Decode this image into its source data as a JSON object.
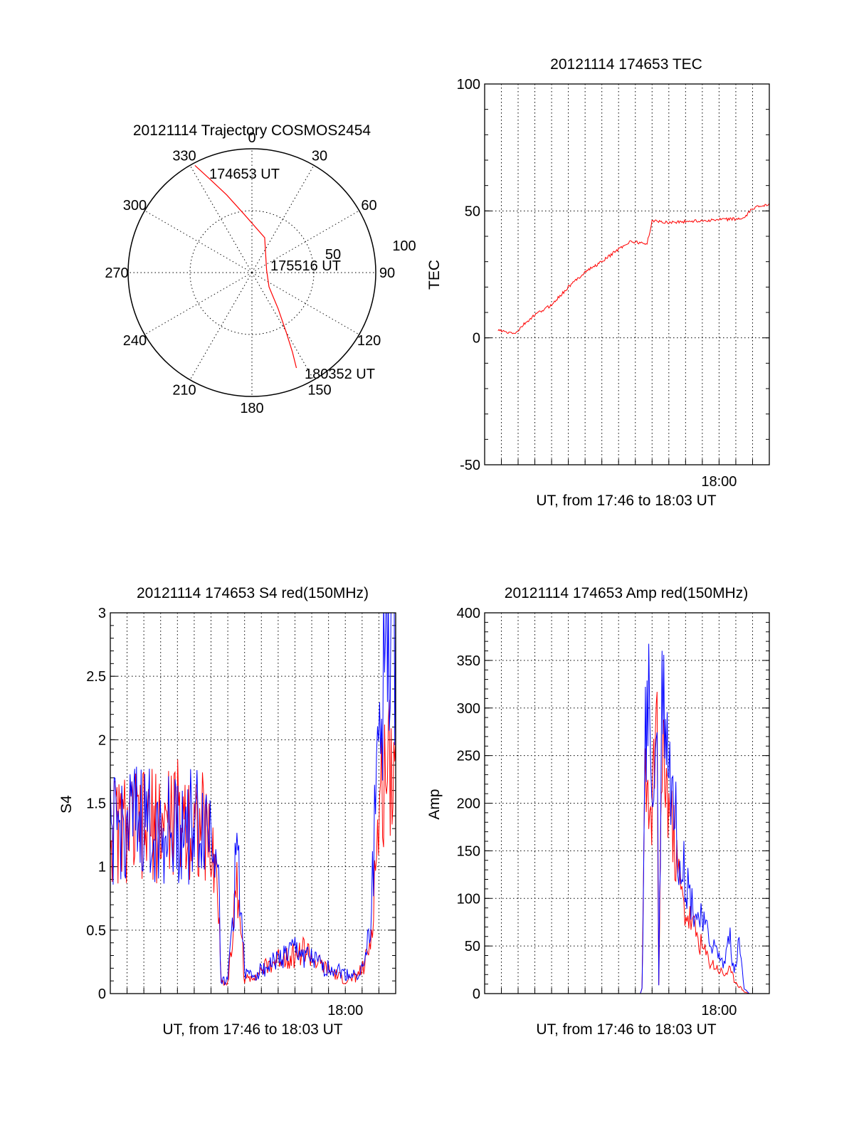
{
  "chart_data": [
    {
      "type": "polar",
      "title": "20121114 Trajectory COSMOS2454",
      "angle_labels": [
        "0",
        "30",
        "60",
        "90",
        "120",
        "150",
        "180",
        "210",
        "240",
        "270",
        "300",
        "330"
      ],
      "radial_labels": [
        "50",
        "100"
      ],
      "annotations": [
        {
          "text": "174653 UT",
          "azimuth": 332,
          "radius": 98
        },
        {
          "text": "175516 UT",
          "azimuth": 140,
          "radius": 18
        },
        {
          "text": "180352 UT",
          "azimuth": 155,
          "radius": 85
        }
      ],
      "series": [
        {
          "color": "#ff0000",
          "points": [
            [
              332,
              98
            ],
            [
              336,
              82
            ],
            [
              342,
              66
            ],
            [
              352,
              48
            ],
            [
              20,
              30
            ],
            [
              80,
              12
            ],
            [
              130,
              18
            ],
            [
              144,
              36
            ],
            [
              150,
              55
            ],
            [
              153,
              72
            ],
            [
              155,
              85
            ]
          ]
        }
      ]
    },
    {
      "type": "line",
      "title": "20121114 174653 TEC",
      "xlabel": "UT, from 17:46 to 18:03 UT",
      "ylabel": "TEC",
      "xlim": [
        17.7667,
        18.05
      ],
      "ylim": [
        -50,
        100
      ],
      "yticks": [
        "-50",
        "0",
        "50",
        "100"
      ],
      "xticks": [
        {
          "value": 18.0,
          "label": "18:00"
        }
      ],
      "grid": true,
      "series": [
        {
          "color": "#ff0000",
          "x": [
            17.78,
            17.79,
            17.7983,
            17.805,
            17.8167,
            17.8333,
            17.85,
            17.8667,
            17.8833,
            17.9,
            17.9117,
            17.9283,
            17.9333,
            17.95,
            18.0,
            18.025,
            18.0333,
            18.0467,
            18.05
          ],
          "y": [
            3,
            2,
            2,
            5,
            9,
            13,
            20,
            26,
            30,
            35,
            38,
            37,
            46,
            45.5,
            46.5,
            47,
            51,
            52.5,
            53
          ]
        }
      ]
    },
    {
      "type": "line",
      "title": "20121114 174653 S4 red(150MHz)",
      "xlabel": "UT, from 17:46 to 18:03 UT",
      "ylabel": "S4",
      "xlim": [
        17.7667,
        18.05
      ],
      "ylim": [
        0,
        3
      ],
      "yticks": [
        "0",
        "0.5",
        "1",
        "1.5",
        "2",
        "2.5",
        "3"
      ],
      "xticks": [
        {
          "value": 18.0,
          "label": "18:00"
        }
      ],
      "grid": true,
      "series": [
        {
          "color": "#ff0000",
          "x": [
            17.7667,
            17.78,
            17.8,
            17.82,
            17.84,
            17.86,
            17.8733,
            17.8767,
            17.8833,
            17.8933,
            17.9,
            17.91,
            17.92,
            17.93,
            17.94,
            17.95,
            17.96,
            17.97,
            17.98,
            17.99,
            18.0,
            18.0083,
            18.0183,
            18.025,
            18.03,
            18.035,
            18.04,
            18.05
          ],
          "y": [
            1.3,
            1.3,
            1.3,
            1.35,
            1.4,
            1.3,
            0.9,
            0.1,
            0.08,
            0.9,
            0.1,
            0.15,
            0.2,
            0.25,
            0.3,
            0.3,
            0.35,
            0.25,
            0.2,
            0.15,
            0.1,
            0.12,
            0.2,
            0.4,
            1.0,
            1.5,
            1.8,
            2.0
          ]
        },
        {
          "color": "#0000ff",
          "x": [
            17.7667,
            17.78,
            17.8,
            17.82,
            17.84,
            17.86,
            17.8733,
            17.8767,
            17.8833,
            17.8933,
            17.9,
            17.91,
            17.92,
            17.93,
            17.94,
            17.95,
            17.96,
            17.97,
            17.98,
            17.99,
            18.0,
            18.0083,
            18.0183,
            18.025,
            18.03,
            18.035,
            18.04,
            18.05
          ],
          "y": [
            1.25,
            1.3,
            1.35,
            1.3,
            1.3,
            1.35,
            1.25,
            0.1,
            0.1,
            1.2,
            0.15,
            0.15,
            0.2,
            0.25,
            0.3,
            0.35,
            0.3,
            0.25,
            0.2,
            0.2,
            0.15,
            0.15,
            0.2,
            0.5,
            1.5,
            2.5,
            2.7,
            3.0
          ]
        }
      ]
    },
    {
      "type": "line",
      "title": "20121114 174653 Amp red(150MHz)",
      "xlabel": "UT, from 17:46 to 18:03 UT",
      "ylabel": "Amp",
      "xlim": [
        17.7667,
        18.05
      ],
      "ylim": [
        0,
        400
      ],
      "yticks": [
        "0",
        "50",
        "100",
        "150",
        "200",
        "250",
        "300",
        "350",
        "400"
      ],
      "xticks": [
        {
          "value": 18.0,
          "label": "18:00"
        }
      ],
      "grid": true,
      "series": [
        {
          "color": "#ff0000",
          "x": [
            17.78,
            17.9217,
            17.9233,
            17.9267,
            17.93,
            17.935,
            17.9383,
            17.94,
            17.9433,
            17.9467,
            17.95,
            17.955,
            17.96,
            17.965,
            17.97,
            17.975,
            17.98,
            17.985,
            17.99,
            17.995,
            18.0,
            18.005,
            18.01,
            18.015,
            18.02,
            18.025,
            18.03,
            18.05
          ],
          "y": [
            0,
            0,
            5,
            270,
            150,
            230,
            260,
            10,
            280,
            220,
            200,
            160,
            120,
            90,
            80,
            70,
            55,
            45,
            35,
            30,
            25,
            20,
            25,
            15,
            8,
            2,
            0,
            0
          ]
        },
        {
          "color": "#0000ff",
          "x": [
            17.78,
            17.9217,
            17.9233,
            17.9267,
            17.93,
            17.935,
            17.9383,
            17.94,
            17.9433,
            17.9467,
            17.95,
            17.955,
            17.96,
            17.965,
            17.97,
            17.975,
            17.98,
            17.985,
            17.99,
            17.995,
            18.0,
            18.005,
            18.01,
            18.015,
            18.02,
            18.025,
            18.03,
            18.05
          ],
          "y": [
            0,
            0,
            5,
            260,
            310,
            200,
            315,
            10,
            340,
            300,
            250,
            200,
            150,
            130,
            110,
            90,
            80,
            70,
            60,
            50,
            40,
            30,
            65,
            20,
            55,
            5,
            0,
            0
          ]
        }
      ]
    }
  ]
}
